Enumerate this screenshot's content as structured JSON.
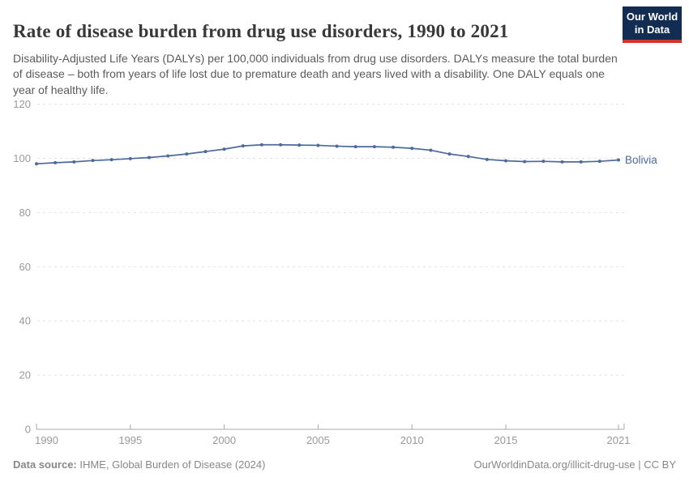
{
  "header": {
    "title": "Rate of disease burden from drug use disorders, 1990 to 2021",
    "subtitle": "Disability-Adjusted Life Years (DALYs) per 100,000 individuals from drug use disorders. DALYs measure the total burden of disease – both from years of life lost due to premature death and years lived with a disability. One DALY equals one year of healthy life.",
    "logo": {
      "line1": "Our World",
      "line2": "in Data"
    }
  },
  "chart_data": {
    "type": "line",
    "title": "Rate of disease burden from drug use disorders, 1990 to 2021",
    "xlabel": "",
    "ylabel": "DALYs per 100,000 individuals",
    "x": [
      1990,
      1991,
      1992,
      1993,
      1994,
      1995,
      1996,
      1997,
      1998,
      1999,
      2000,
      2001,
      2002,
      2003,
      2004,
      2005,
      2006,
      2007,
      2008,
      2009,
      2010,
      2011,
      2012,
      2013,
      2014,
      2015,
      2016,
      2017,
      2018,
      2019,
      2020,
      2021
    ],
    "series": [
      {
        "name": "Bolivia",
        "color": "#4C6A9C",
        "values": [
          98.0,
          98.4,
          98.7,
          99.2,
          99.5,
          99.9,
          100.3,
          100.9,
          101.6,
          102.5,
          103.4,
          104.6,
          105.0,
          105.0,
          104.9,
          104.8,
          104.5,
          104.3,
          104.3,
          104.1,
          103.7,
          103.0,
          101.6,
          100.7,
          99.6,
          99.1,
          98.8,
          98.9,
          98.7,
          98.7,
          98.9,
          99.4
        ]
      }
    ],
    "ylim": [
      0,
      120
    ],
    "yticks": [
      0,
      20,
      40,
      60,
      80,
      100,
      120
    ],
    "xticks": [
      1990,
      1995,
      2000,
      2005,
      2010,
      2015,
      2021
    ],
    "grid": "horizontal-dashed",
    "legend_position": "end-of-line-label",
    "end_label": "Bolivia"
  },
  "footer": {
    "datasource_label": "Data source:",
    "datasource_value": " IHME, Global Burden of Disease (2024)",
    "attribution": "OurWorldinData.org/illicit-drug-use | CC BY"
  },
  "colors": {
    "accent_line": "#4C6A9C",
    "logo_navy": "#132C52",
    "logo_red": "#D0342B",
    "grid": "#E2E2E2",
    "axis": "#A8A8A8",
    "tick_text": "#999999",
    "title_text": "#383838",
    "subtitle_text": "#5B5B5B",
    "footer_text": "#888888"
  }
}
